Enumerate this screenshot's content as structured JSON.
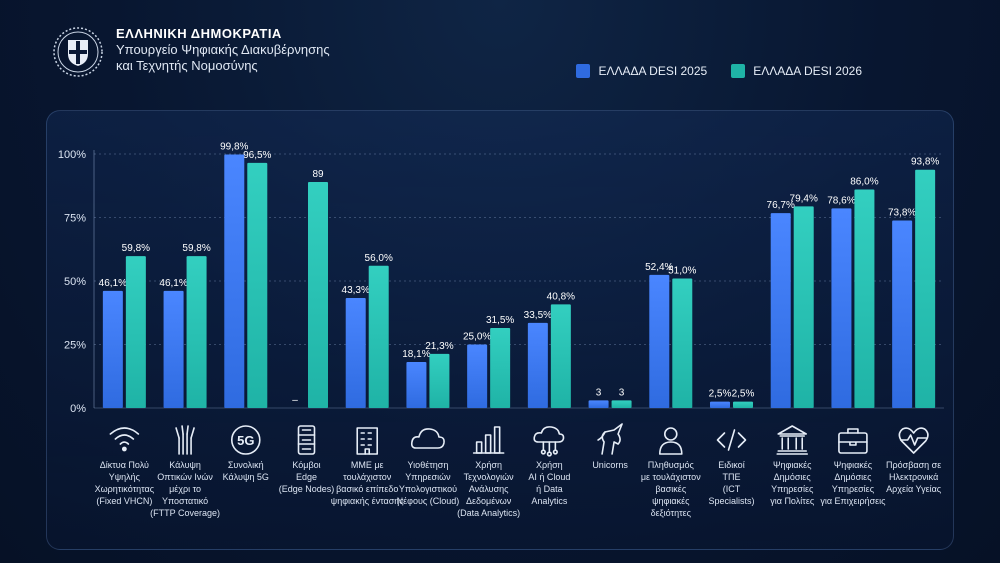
{
  "header": {
    "title": "ΕΛΛΗΝΙΚΗ ΔΗΜΟΚΡΑΤΙΑ",
    "subtitle_line1": "Υπουργείο Ψηφιακής Διακυβέρνησης",
    "subtitle_line2": "και Τεχνητής Νομοσύνης"
  },
  "colors": {
    "s2025": "#2f6be0",
    "s2026": "#1fb3a6"
  },
  "chart_data": {
    "type": "bar",
    "ylim": [
      0,
      100
    ],
    "yticks": [
      "0%",
      "25%",
      "50%",
      "75%",
      "100%"
    ],
    "ytick_values": [
      0,
      25,
      50,
      75,
      100
    ],
    "legend_position": "top-right",
    "series": [
      {
        "name": "ΕΛΛΑΔΑ DESI 2025",
        "values": [
          46.1,
          46.1,
          99.8,
          0,
          43.3,
          18.1,
          25.0,
          33.5,
          3,
          52.4,
          2.5,
          76.7,
          78.6,
          73.8
        ],
        "labels": [
          "46,1%",
          "46,1%",
          "99,8%",
          "–",
          "43,3%",
          "18,1%",
          "25,0%",
          "33,5%",
          "3",
          "52,4%",
          "2,5%",
          "76,7%",
          "78,6%",
          "73,8%"
        ]
      },
      {
        "name": "ΕΛΛΑΔΑ DESI 2026",
        "values": [
          59.8,
          59.8,
          96.5,
          89,
          56.0,
          21.3,
          31.5,
          40.8,
          3,
          51.0,
          2.5,
          79.4,
          86.0,
          93.8
        ],
        "labels": [
          "59,8%",
          "59,8%",
          "96,5%",
          "89",
          "56,0%",
          "21,3%",
          "31,5%",
          "40,8%",
          "3",
          "51,0%",
          "2,5%",
          "79,4%",
          "86,0%",
          "93,8%"
        ]
      }
    ],
    "categories": [
      {
        "icon": "wifi-icon",
        "label": [
          "Δίκτυα Πολύ",
          "Υψηλής",
          "Χωρητικότητας",
          "(Fixed VHCN)"
        ]
      },
      {
        "icon": "fiber-icon",
        "label": [
          "Κάλυψη",
          "Οπτικών Ινών",
          "μέχρι το",
          "Υποστατικό",
          "(FTTP Coverage)"
        ]
      },
      {
        "icon": "5g-icon",
        "label": [
          "Συνολική",
          "Κάλυψη 5G"
        ]
      },
      {
        "icon": "server-icon",
        "label": [
          "Κόμβοι",
          "Edge",
          "(Edge Nodes)"
        ]
      },
      {
        "icon": "building-icon",
        "label": [
          "ΜΜΕ με",
          "τουλάχιστον",
          "βασικό επίπεδο",
          "ψηφιακής έντασης"
        ]
      },
      {
        "icon": "cloud-icon",
        "label": [
          "Υιοθέτηση",
          "Υπηρεσιών",
          "Υπολογιστικού",
          "Νέφους (Cloud)"
        ]
      },
      {
        "icon": "bar-chart-icon",
        "label": [
          "Χρήση",
          "Τεχνολογιών",
          "Ανάλυσης",
          "Δεδομένων",
          "(Data Analytics)"
        ]
      },
      {
        "icon": "cloud-network-icon",
        "label": [
          "Χρήση",
          "AI ή Cloud",
          "ή Data",
          "Analytics"
        ]
      },
      {
        "icon": "unicorn-icon",
        "label": [
          "Unicorns"
        ]
      },
      {
        "icon": "person-icon",
        "label": [
          "Πληθυσμός",
          "με τουλάχιστον",
          "βασικές",
          "ψηφιακές",
          "δεξιότητες"
        ]
      },
      {
        "icon": "code-icon",
        "label": [
          "Ειδικοί",
          "ΤΠΕ",
          "(ICT",
          "Specialists)"
        ]
      },
      {
        "icon": "government-icon",
        "label": [
          "Ψηφιακές",
          "Δημόσιες",
          "Υπηρεσίες",
          "για Πολίτες"
        ]
      },
      {
        "icon": "briefcase-icon",
        "label": [
          "Ψηφιακές",
          "Δημόσιες",
          "Υπηρεσίες",
          "για Επιχειρήσεις"
        ]
      },
      {
        "icon": "heart-pulse-icon",
        "label": [
          "Πρόσβαση σε",
          "Ηλεκτρονικά",
          "Αρχεία Υγείας"
        ]
      }
    ]
  }
}
